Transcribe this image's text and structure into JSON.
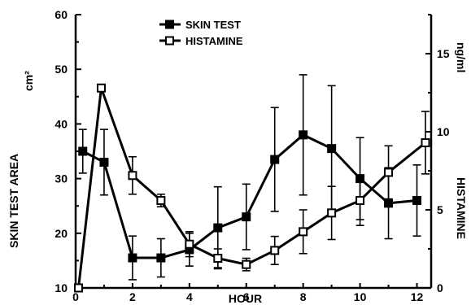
{
  "chart_data": {
    "type": "line",
    "xlabel": "HOUR",
    "ylabel_left": "SKIN TEST AREA",
    "ylabel_left_unit": "cm²",
    "ylabel_right": "HISTAMINE",
    "ylabel_right_unit": "ng/ml",
    "xlim": [
      0,
      12.5
    ],
    "ylim_left": [
      10,
      60
    ],
    "ylim_right": [
      0,
      17.5
    ],
    "x_ticks": [
      0,
      2,
      4,
      6,
      8,
      10,
      12
    ],
    "y_left_ticks": [
      10,
      20,
      30,
      40,
      50,
      60
    ],
    "y_right_ticks": [
      0,
      5,
      10,
      15
    ],
    "legend_position": "top-center",
    "series": [
      {
        "name": "SKIN TEST",
        "marker": "filled-square",
        "axis": "left",
        "x": [
          0.25,
          1,
          2,
          3,
          4,
          5,
          6,
          7,
          8,
          9,
          10,
          11,
          12
        ],
        "y": [
          35,
          33,
          15.5,
          15.5,
          17,
          21,
          23,
          33.5,
          38,
          35.5,
          30,
          25.5,
          26
        ],
        "err": [
          4,
          6,
          4,
          3.5,
          3,
          7.5,
          6,
          9.5,
          11,
          11.5,
          7.5,
          6.5,
          6.5
        ]
      },
      {
        "name": "HISTAMINE",
        "marker": "open-square",
        "axis": "right",
        "x": [
          0.1,
          0.9,
          2,
          3,
          4,
          5,
          6,
          7,
          8,
          9,
          10,
          11,
          12.3
        ],
        "y": [
          0,
          12.8,
          7.2,
          5.6,
          2.8,
          1.9,
          1.5,
          2.4,
          3.6,
          4.8,
          5.6,
          7.4,
          9.3
        ],
        "err": [
          0,
          0,
          1.2,
          0.4,
          0.8,
          0.6,
          0.4,
          0.9,
          1.4,
          1.7,
          1.6,
          1.7,
          2
        ]
      }
    ]
  }
}
